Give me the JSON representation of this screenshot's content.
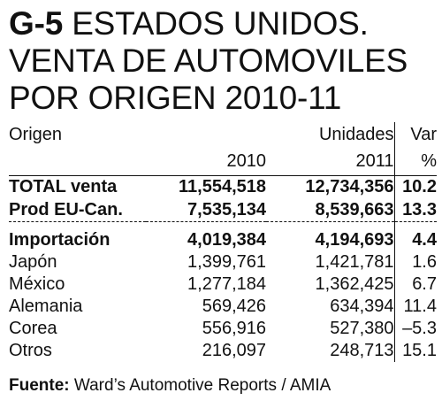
{
  "title": {
    "code": "G-5",
    "line1": "ESTADOS UNIDOS.",
    "line2": "VENTA DE AUTOMOVILES",
    "line3": "POR ORIGEN 2010-11"
  },
  "chart_data": {
    "type": "table",
    "columns": {
      "label": "Origen",
      "group": "Unidades",
      "var": "Var",
      "y2010": "2010",
      "y2011": "2011",
      "pct": "%"
    },
    "rows": [
      {
        "label": "TOTAL venta",
        "v2010": "11,554,518",
        "v2011": "12,734,356",
        "var": "10.2",
        "bold": true
      },
      {
        "label": "Prod EU-Can.",
        "v2010": "7,535,134",
        "v2011": "8,539,663",
        "var": "13.3",
        "bold": true
      },
      {
        "label": "Importación",
        "v2010": "4,019,384",
        "v2011": "4,194,693",
        "var": "4.4",
        "bold": true
      },
      {
        "label": "Japón",
        "v2010": "1,399,761",
        "v2011": "1,421,781",
        "var": "1.6",
        "bold": false
      },
      {
        "label": "México",
        "v2010": "1,277,184",
        "v2011": "1,362,425",
        "var": "6.7",
        "bold": false
      },
      {
        "label": "Alemania",
        "v2010": "569,426",
        "v2011": "634,394",
        "var": "11.4",
        "bold": false
      },
      {
        "label": "Corea",
        "v2010": "556,916",
        "v2011": "527,380",
        "var": "–5.3",
        "bold": false
      },
      {
        "label": "Otros",
        "v2010": "216,097",
        "v2011": "248,713",
        "var": "15.1",
        "bold": false
      }
    ]
  },
  "source": {
    "label": "Fuente:",
    "text": "Ward’s Automotive Reports / AMIA"
  }
}
